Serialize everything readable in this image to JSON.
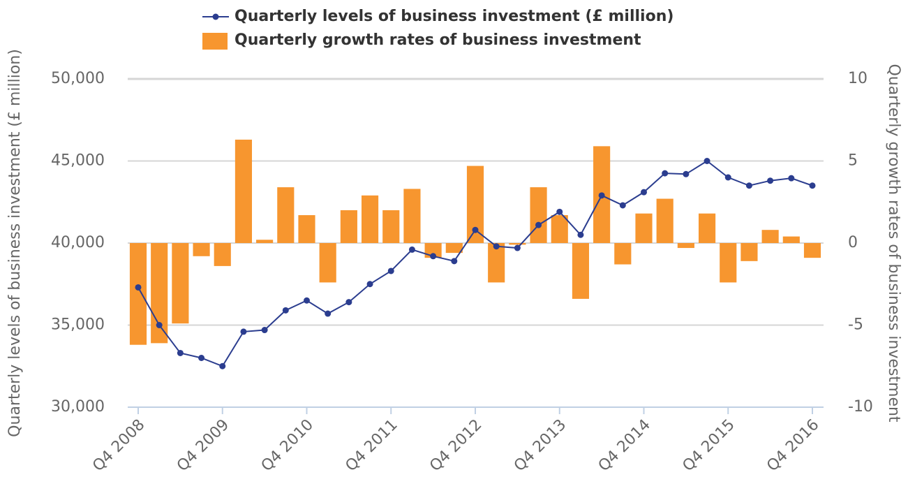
{
  "chart_data": {
    "type": "combo",
    "categories": [
      "Q4 2008",
      null,
      null,
      null,
      "Q4 2009",
      null,
      null,
      null,
      "Q4 2010",
      null,
      null,
      null,
      "Q4 2011",
      null,
      null,
      null,
      "Q4 2012",
      null,
      null,
      null,
      "Q4 2013",
      null,
      null,
      null,
      "Q4 2014",
      null,
      null,
      null,
      "Q4 2015",
      null,
      null,
      null,
      "Q4 2016"
    ],
    "series": [
      {
        "name": "Quarterly levels of business investment (£ million)",
        "type": "line",
        "color": "#2b3d8f",
        "values": [
          37300,
          35000,
          33300,
          33000,
          32500,
          34600,
          34700,
          35900,
          36500,
          35700,
          36400,
          37500,
          38300,
          39600,
          39200,
          38900,
          40800,
          39800,
          39700,
          41100,
          41900,
          40500,
          42900,
          42300,
          43100,
          44250,
          44200,
          45000,
          44000,
          43500,
          43800,
          43950,
          43500
        ]
      },
      {
        "name": "Quarterly growth rates of business investment",
        "type": "bar",
        "axis": "y2",
        "color": "#f7962f",
        "values": [
          -6.2,
          -6.1,
          -4.9,
          -0.8,
          -1.4,
          6.3,
          0.2,
          3.4,
          1.7,
          -2.4,
          2.0,
          2.9,
          2.0,
          3.3,
          -0.9,
          -0.6,
          4.7,
          -2.4,
          -0.1,
          3.4,
          1.7,
          -3.4,
          5.9,
          -1.3,
          1.8,
          2.7,
          -0.3,
          1.8,
          -2.4,
          -1.1,
          0.8,
          0.4,
          -0.9
        ]
      }
    ],
    "y_label": "Quarterly levels of business investment (£ million)",
    "y2_label": "Quarterly growth rates of business investment",
    "ylim": [
      30000,
      50000
    ],
    "yticks": [
      {
        "value": 30000,
        "label": "30,000"
      },
      {
        "value": 35000,
        "label": "35,000"
      },
      {
        "value": 40000,
        "label": "40,000"
      },
      {
        "value": 45000,
        "label": "45,000"
      },
      {
        "value": 50000,
        "label": "50,000"
      }
    ],
    "y2lim": [
      -10,
      10
    ],
    "y2ticks": [
      -10,
      -5,
      0,
      5,
      10
    ],
    "grid": true
  }
}
